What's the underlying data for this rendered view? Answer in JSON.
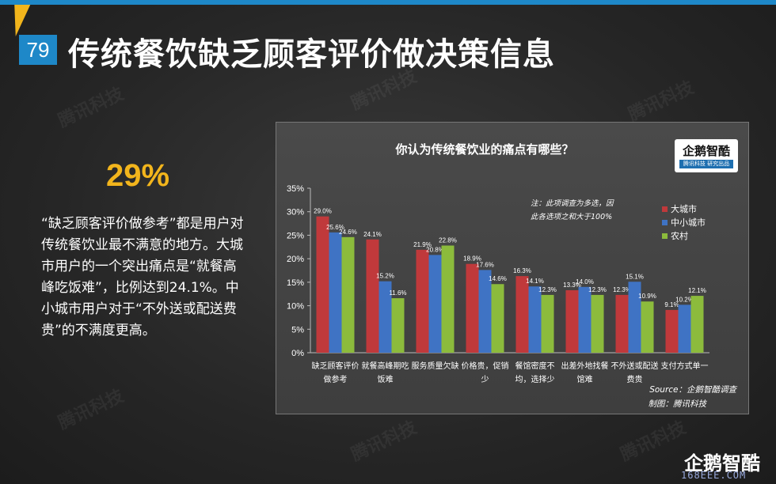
{
  "slide": {
    "number": "79",
    "title": "传统餐饮缺乏顾客评价做决策信息",
    "highlight": "29%",
    "description": "“缺乏顾客评价做参考”都是用户对传统餐饮业最不满意的地方。大城市用户的一个突出痛点是“就餐高峰吃饭难”，比例达到24.1%。中小城市用户对于“不外送或配送费贵”的不满度更高。",
    "watermark": "腾讯科技",
    "bottom_brand": "企鹅智酷",
    "site": "168EEE.COM"
  },
  "brand_box": {
    "main": "企鹅智酷",
    "sub": "腾讯科技 研究出品"
  },
  "colors": {
    "accent_blue": "#1e88c8",
    "accent_yellow": "#f2b51c",
    "series": [
      "#c0393b",
      "#3f73c4",
      "#8cbb3c"
    ]
  },
  "chart_data": {
    "type": "bar",
    "title": "你认为传统餐饮业的痛点有哪些？",
    "note_lines": [
      "注：此项调查为多选，因",
      "此各选项之和大于100%"
    ],
    "categories": [
      [
        "缺乏顾客评价",
        "做参考"
      ],
      [
        "就餐高峰期吃",
        "饭难"
      ],
      [
        "服务质量欠缺"
      ],
      [
        "价格贵，促销",
        "少"
      ],
      [
        "餐馆密度不",
        "均，选择少"
      ],
      [
        "出差外地找餐",
        "馆难"
      ],
      [
        "不外送或配送",
        "费贵"
      ],
      [
        "支付方式单一"
      ]
    ],
    "series": [
      {
        "name": "大城市",
        "values": [
          29.0,
          24.1,
          21.9,
          18.9,
          16.3,
          13.3,
          12.3,
          9.1
        ]
      },
      {
        "name": "中小城市",
        "values": [
          25.6,
          15.2,
          20.8,
          17.6,
          14.1,
          14.0,
          15.1,
          10.2
        ]
      },
      {
        "name": "农村",
        "values": [
          24.6,
          11.6,
          22.8,
          14.6,
          12.3,
          12.3,
          10.9,
          12.1
        ]
      }
    ],
    "value_suffix": "%",
    "y_ticks": [
      "0%",
      "5%",
      "10%",
      "15%",
      "20%",
      "25%",
      "30%",
      "35%"
    ],
    "ylim": [
      0,
      35
    ],
    "grid": false,
    "legend_placement": "right",
    "source": "Source：企鹅智酷调查",
    "credit": "制图：腾讯科技"
  }
}
